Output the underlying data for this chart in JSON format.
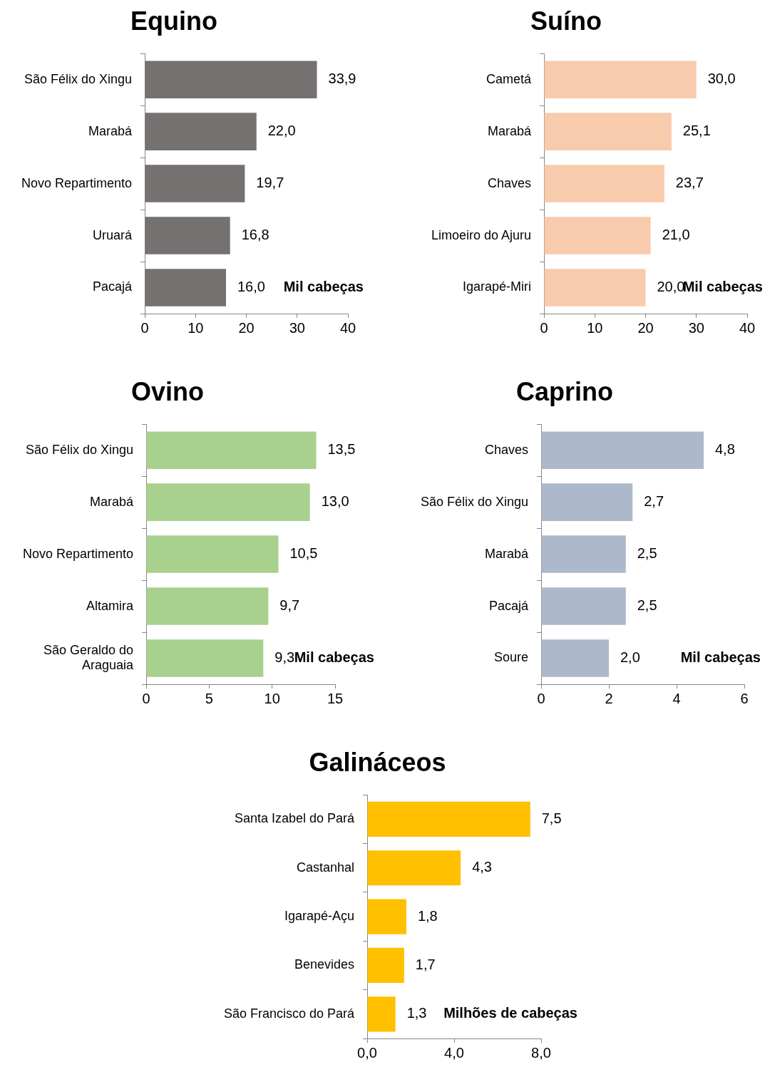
{
  "chart_data": [
    {
      "type": "bar",
      "orientation": "horizontal",
      "title": "Equino",
      "categories": [
        "São Félix do Xingu",
        "Marabá",
        "Novo Repartimento",
        "Uruará",
        "Pacajá"
      ],
      "values": [
        33.9,
        22.0,
        19.7,
        16.8,
        16.0
      ],
      "value_labels": [
        "33,9",
        "22,0",
        "19,7",
        "16,8",
        "16,0"
      ],
      "color": "#767171",
      "xlim": [
        0,
        40
      ],
      "xticks": [
        0,
        10,
        20,
        30,
        40
      ],
      "grid": false,
      "legend": false,
      "annotations": [
        "Mil cabeças"
      ]
    },
    {
      "type": "bar",
      "orientation": "horizontal",
      "title": "Suíno",
      "categories": [
        "Cametá",
        "Marabá",
        "Chaves",
        "Limoeiro do Ajuru",
        "Igarapé-Miri"
      ],
      "values": [
        30.0,
        25.1,
        23.7,
        21.0,
        20.0
      ],
      "value_labels": [
        "30,0",
        "25,1",
        "23,7",
        "21,0",
        "20,0"
      ],
      "color": "#f8cbad",
      "xlim": [
        0,
        40
      ],
      "xticks": [
        0,
        10,
        20,
        30,
        40
      ],
      "grid": false,
      "legend": false,
      "annotations": [
        "Mil cabeças"
      ]
    },
    {
      "type": "bar",
      "orientation": "horizontal",
      "title": "Ovino",
      "categories": [
        "São Félix do Xingu",
        "Marabá",
        "Novo Repartimento",
        "Altamira",
        "São Geraldo do Araguaia"
      ],
      "values": [
        13.5,
        13.0,
        10.5,
        9.7,
        9.3
      ],
      "value_labels": [
        "13,5",
        "13,0",
        "10,5",
        "9,7",
        "9,3"
      ],
      "color": "#a9d18e",
      "xlim": [
        0,
        15
      ],
      "xticks": [
        0,
        5,
        10,
        15
      ],
      "grid": false,
      "legend": false,
      "annotations": [
        "Mil cabeças"
      ]
    },
    {
      "type": "bar",
      "orientation": "horizontal",
      "title": "Caprino",
      "categories": [
        "Chaves",
        "São Félix do Xingu",
        "Marabá",
        "Pacajá",
        "Soure"
      ],
      "values": [
        4.8,
        2.7,
        2.5,
        2.5,
        2.0
      ],
      "value_labels": [
        "4,8",
        "2,7",
        "2,5",
        "2,5",
        "2,0"
      ],
      "color": "#adb9ca",
      "xlim": [
        0,
        6
      ],
      "xticks": [
        0,
        2,
        4,
        6
      ],
      "grid": false,
      "legend": false,
      "annotations": [
        "Mil cabeças"
      ]
    },
    {
      "type": "bar",
      "orientation": "horizontal",
      "title": "Galináceos",
      "categories": [
        "Santa Izabel do Pará",
        "Castanhal",
        "Igarapé-Açu",
        "Benevides",
        "São Francisco do Pará"
      ],
      "values": [
        7.5,
        4.3,
        1.8,
        1.7,
        1.3
      ],
      "value_labels": [
        "7,5",
        "4,3",
        "1,8",
        "1,7",
        "1,3"
      ],
      "color": "#ffc000",
      "xlim": [
        0,
        8
      ],
      "xticks": [
        {
          "value": 0,
          "label": "0,0"
        },
        {
          "value": 4,
          "label": "4,0"
        },
        {
          "value": 8,
          "label": "8,0"
        }
      ],
      "grid": false,
      "legend": false,
      "annotations": [
        "Milhões de cabeças"
      ]
    }
  ]
}
